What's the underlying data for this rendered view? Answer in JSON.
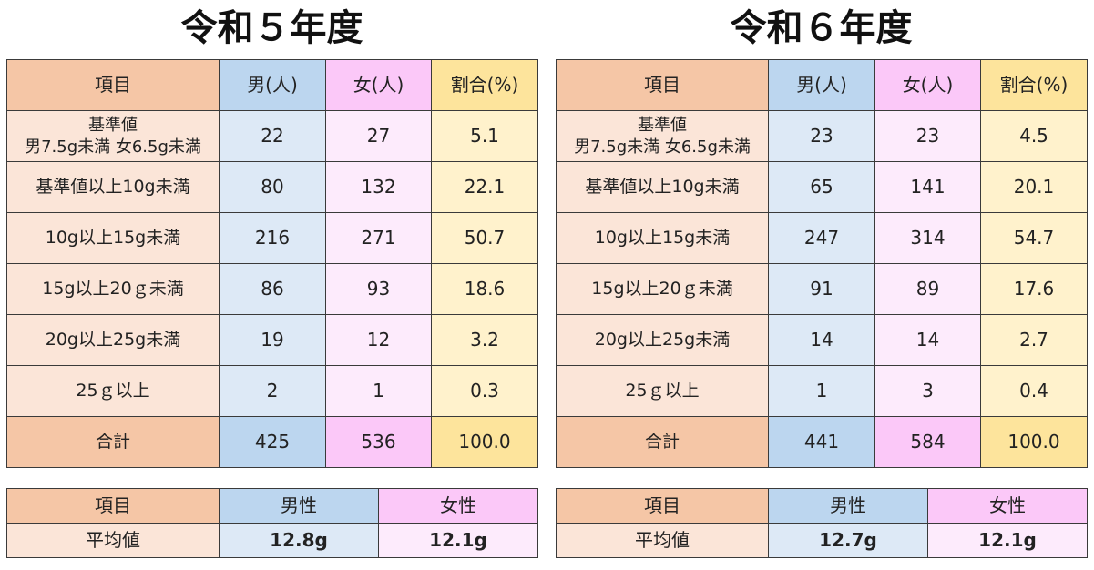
{
  "headers": {
    "item": "項目",
    "male": "男(人)",
    "female": "女(人)",
    "ratio": "割合(%)",
    "male_sex": "男性",
    "female_sex": "女性",
    "average": "平均値"
  },
  "row_labels": [
    "基準値",
    "男7.5g未満 女6.5g未満",
    "基準値以上10g未満",
    "10g以上15g未満",
    "15g以上20ｇ未満",
    "20g以上25g未満",
    "25ｇ以上",
    "合計"
  ],
  "years": [
    {
      "title": "令和５年度",
      "rows": [
        {
          "male": "22",
          "female": "27",
          "ratio": "5.1"
        },
        {
          "male": "80",
          "female": "132",
          "ratio": "22.1"
        },
        {
          "male": "216",
          "female": "271",
          "ratio": "50.7"
        },
        {
          "male": "86",
          "female": "93",
          "ratio": "18.6"
        },
        {
          "male": "19",
          "female": "12",
          "ratio": "3.2"
        },
        {
          "male": "2",
          "female": "1",
          "ratio": "0.3"
        },
        {
          "male": "425",
          "female": "536",
          "ratio": "100.0"
        }
      ],
      "avg_male": "12.8g",
      "avg_female": "12.1g"
    },
    {
      "title": "令和６年度",
      "rows": [
        {
          "male": "23",
          "female": "23",
          "ratio": "4.5"
        },
        {
          "male": "65",
          "female": "141",
          "ratio": "20.1"
        },
        {
          "male": "247",
          "female": "314",
          "ratio": "54.7"
        },
        {
          "male": "91",
          "female": "89",
          "ratio": "17.6"
        },
        {
          "male": "14",
          "female": "14",
          "ratio": "2.7"
        },
        {
          "male": "1",
          "female": "3",
          "ratio": "0.4"
        },
        {
          "male": "441",
          "female": "584",
          "ratio": "100.0"
        }
      ],
      "avg_male": "12.7g",
      "avg_female": "12.1g"
    }
  ]
}
